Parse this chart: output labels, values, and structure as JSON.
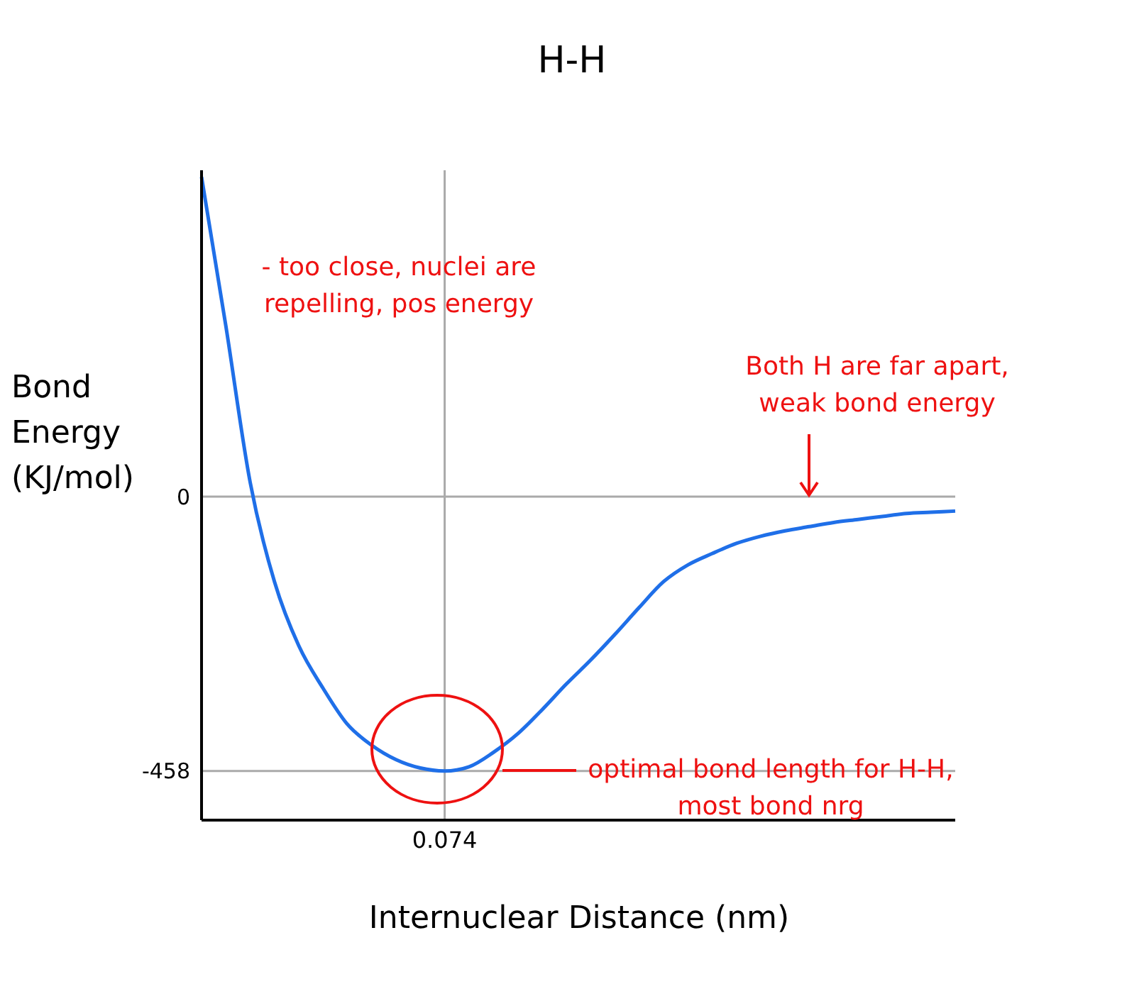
{
  "chart_data": {
    "type": "line",
    "title": "H-H",
    "xlabel": "Internuclear Distance (nm)",
    "ylabel": "Bond Energy (KJ/mol)",
    "categories": [
      null,
      null,
      null,
      null,
      null,
      null,
      null,
      null,
      null,
      null,
      "0.074",
      null,
      null,
      null,
      null,
      null,
      null,
      null,
      null,
      null,
      null,
      null,
      null,
      null,
      null,
      null,
      null,
      null,
      null,
      null,
      null,
      null
    ],
    "series": [
      {
        "color": "#1f6fe8",
        "values": [
          534,
          285,
          24,
          -142,
          -249,
          -320,
          -380,
          -415,
          -439,
          -453,
          -458,
          -451,
          -427,
          -396,
          -356,
          -313,
          -273,
          -230,
          -185,
          -142,
          -114,
          -95,
          -78,
          -66,
          -57,
          -50,
          -43,
          -38,
          -33,
          -28,
          -26,
          -24
        ]
      }
    ],
    "ylim": [
      -540,
      545
    ],
    "yticks": [
      0,
      -458
    ],
    "ref_lines": [
      {
        "axis": "y",
        "value": 0
      },
      {
        "axis": "y",
        "value": -458
      },
      {
        "axis": "x",
        "value": "0.074"
      }
    ],
    "annotations": [
      "- too close, nuclei are repelling, pos energy",
      "Both H are far apart, weak bond energy",
      "optimal bond length for H-H, most bond nrg"
    ]
  }
}
